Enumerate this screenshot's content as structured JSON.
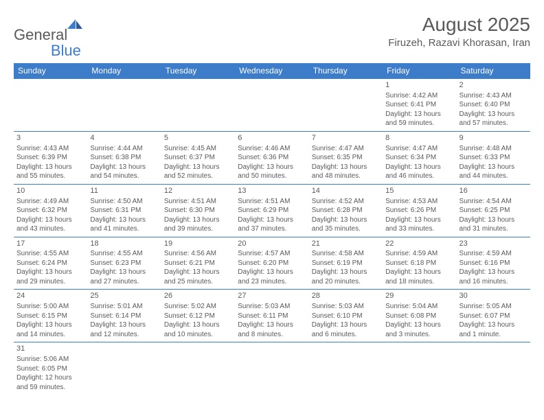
{
  "brand": {
    "name1": "General",
    "name2": "Blue"
  },
  "title": "August 2025",
  "location": "Firuzeh, Razavi Khorasan, Iran",
  "colors": {
    "accent": "#3d7cc9",
    "text": "#58595b",
    "bg": "#ffffff"
  },
  "dayHeaders": [
    "Sunday",
    "Monday",
    "Tuesday",
    "Wednesday",
    "Thursday",
    "Friday",
    "Saturday"
  ],
  "weeks": [
    [
      null,
      null,
      null,
      null,
      null,
      {
        "n": "1",
        "sr": "Sunrise: 4:42 AM",
        "ss": "Sunset: 6:41 PM",
        "d1": "Daylight: 13 hours",
        "d2": "and 59 minutes."
      },
      {
        "n": "2",
        "sr": "Sunrise: 4:43 AM",
        "ss": "Sunset: 6:40 PM",
        "d1": "Daylight: 13 hours",
        "d2": "and 57 minutes."
      }
    ],
    [
      {
        "n": "3",
        "sr": "Sunrise: 4:43 AM",
        "ss": "Sunset: 6:39 PM",
        "d1": "Daylight: 13 hours",
        "d2": "and 55 minutes."
      },
      {
        "n": "4",
        "sr": "Sunrise: 4:44 AM",
        "ss": "Sunset: 6:38 PM",
        "d1": "Daylight: 13 hours",
        "d2": "and 54 minutes."
      },
      {
        "n": "5",
        "sr": "Sunrise: 4:45 AM",
        "ss": "Sunset: 6:37 PM",
        "d1": "Daylight: 13 hours",
        "d2": "and 52 minutes."
      },
      {
        "n": "6",
        "sr": "Sunrise: 4:46 AM",
        "ss": "Sunset: 6:36 PM",
        "d1": "Daylight: 13 hours",
        "d2": "and 50 minutes."
      },
      {
        "n": "7",
        "sr": "Sunrise: 4:47 AM",
        "ss": "Sunset: 6:35 PM",
        "d1": "Daylight: 13 hours",
        "d2": "and 48 minutes."
      },
      {
        "n": "8",
        "sr": "Sunrise: 4:47 AM",
        "ss": "Sunset: 6:34 PM",
        "d1": "Daylight: 13 hours",
        "d2": "and 46 minutes."
      },
      {
        "n": "9",
        "sr": "Sunrise: 4:48 AM",
        "ss": "Sunset: 6:33 PM",
        "d1": "Daylight: 13 hours",
        "d2": "and 44 minutes."
      }
    ],
    [
      {
        "n": "10",
        "sr": "Sunrise: 4:49 AM",
        "ss": "Sunset: 6:32 PM",
        "d1": "Daylight: 13 hours",
        "d2": "and 43 minutes."
      },
      {
        "n": "11",
        "sr": "Sunrise: 4:50 AM",
        "ss": "Sunset: 6:31 PM",
        "d1": "Daylight: 13 hours",
        "d2": "and 41 minutes."
      },
      {
        "n": "12",
        "sr": "Sunrise: 4:51 AM",
        "ss": "Sunset: 6:30 PM",
        "d1": "Daylight: 13 hours",
        "d2": "and 39 minutes."
      },
      {
        "n": "13",
        "sr": "Sunrise: 4:51 AM",
        "ss": "Sunset: 6:29 PM",
        "d1": "Daylight: 13 hours",
        "d2": "and 37 minutes."
      },
      {
        "n": "14",
        "sr": "Sunrise: 4:52 AM",
        "ss": "Sunset: 6:28 PM",
        "d1": "Daylight: 13 hours",
        "d2": "and 35 minutes."
      },
      {
        "n": "15",
        "sr": "Sunrise: 4:53 AM",
        "ss": "Sunset: 6:26 PM",
        "d1": "Daylight: 13 hours",
        "d2": "and 33 minutes."
      },
      {
        "n": "16",
        "sr": "Sunrise: 4:54 AM",
        "ss": "Sunset: 6:25 PM",
        "d1": "Daylight: 13 hours",
        "d2": "and 31 minutes."
      }
    ],
    [
      {
        "n": "17",
        "sr": "Sunrise: 4:55 AM",
        "ss": "Sunset: 6:24 PM",
        "d1": "Daylight: 13 hours",
        "d2": "and 29 minutes."
      },
      {
        "n": "18",
        "sr": "Sunrise: 4:55 AM",
        "ss": "Sunset: 6:23 PM",
        "d1": "Daylight: 13 hours",
        "d2": "and 27 minutes."
      },
      {
        "n": "19",
        "sr": "Sunrise: 4:56 AM",
        "ss": "Sunset: 6:21 PM",
        "d1": "Daylight: 13 hours",
        "d2": "and 25 minutes."
      },
      {
        "n": "20",
        "sr": "Sunrise: 4:57 AM",
        "ss": "Sunset: 6:20 PM",
        "d1": "Daylight: 13 hours",
        "d2": "and 23 minutes."
      },
      {
        "n": "21",
        "sr": "Sunrise: 4:58 AM",
        "ss": "Sunset: 6:19 PM",
        "d1": "Daylight: 13 hours",
        "d2": "and 20 minutes."
      },
      {
        "n": "22",
        "sr": "Sunrise: 4:59 AM",
        "ss": "Sunset: 6:18 PM",
        "d1": "Daylight: 13 hours",
        "d2": "and 18 minutes."
      },
      {
        "n": "23",
        "sr": "Sunrise: 4:59 AM",
        "ss": "Sunset: 6:16 PM",
        "d1": "Daylight: 13 hours",
        "d2": "and 16 minutes."
      }
    ],
    [
      {
        "n": "24",
        "sr": "Sunrise: 5:00 AM",
        "ss": "Sunset: 6:15 PM",
        "d1": "Daylight: 13 hours",
        "d2": "and 14 minutes."
      },
      {
        "n": "25",
        "sr": "Sunrise: 5:01 AM",
        "ss": "Sunset: 6:14 PM",
        "d1": "Daylight: 13 hours",
        "d2": "and 12 minutes."
      },
      {
        "n": "26",
        "sr": "Sunrise: 5:02 AM",
        "ss": "Sunset: 6:12 PM",
        "d1": "Daylight: 13 hours",
        "d2": "and 10 minutes."
      },
      {
        "n": "27",
        "sr": "Sunrise: 5:03 AM",
        "ss": "Sunset: 6:11 PM",
        "d1": "Daylight: 13 hours",
        "d2": "and 8 minutes."
      },
      {
        "n": "28",
        "sr": "Sunrise: 5:03 AM",
        "ss": "Sunset: 6:10 PM",
        "d1": "Daylight: 13 hours",
        "d2": "and 6 minutes."
      },
      {
        "n": "29",
        "sr": "Sunrise: 5:04 AM",
        "ss": "Sunset: 6:08 PM",
        "d1": "Daylight: 13 hours",
        "d2": "and 3 minutes."
      },
      {
        "n": "30",
        "sr": "Sunrise: 5:05 AM",
        "ss": "Sunset: 6:07 PM",
        "d1": "Daylight: 13 hours",
        "d2": "and 1 minute."
      }
    ],
    [
      {
        "n": "31",
        "sr": "Sunrise: 5:06 AM",
        "ss": "Sunset: 6:05 PM",
        "d1": "Daylight: 12 hours",
        "d2": "and 59 minutes."
      },
      null,
      null,
      null,
      null,
      null,
      null
    ]
  ]
}
